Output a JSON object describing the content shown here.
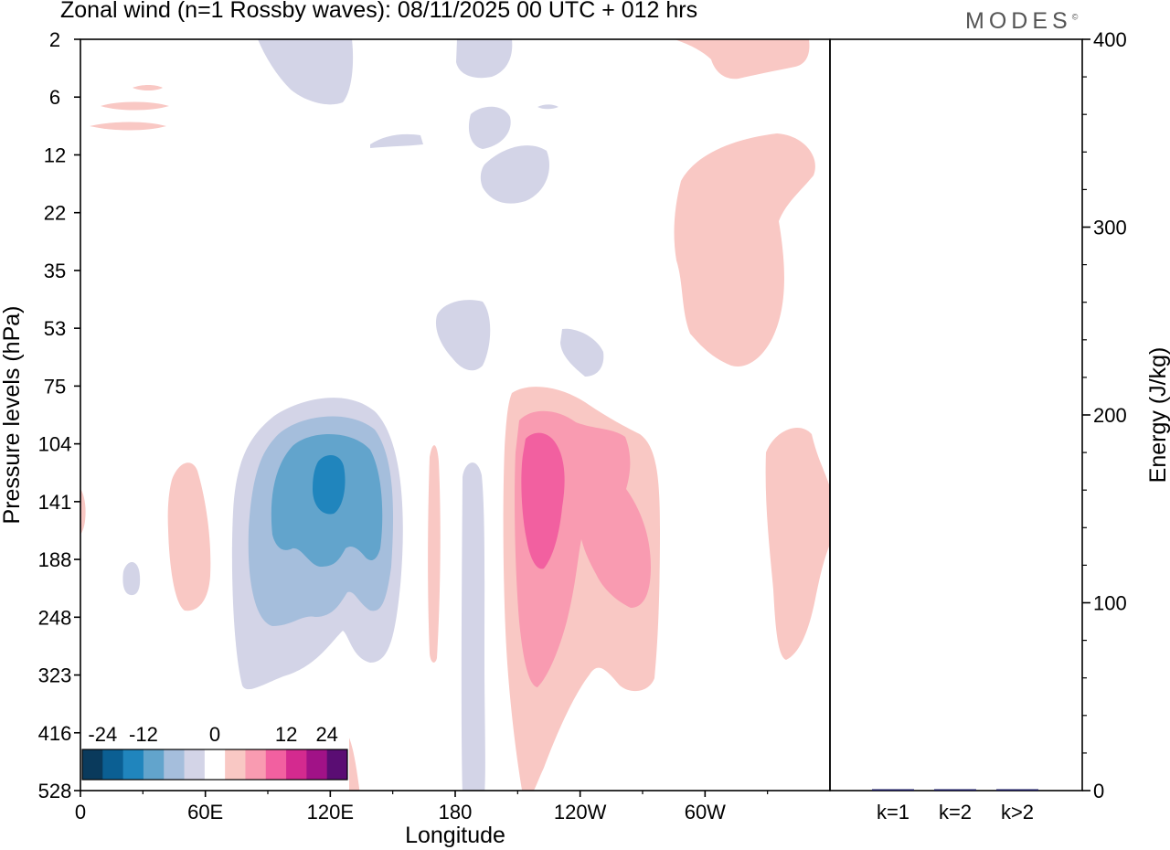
{
  "title": "Zonal wind (n=1 Rossby waves):  08/11/2025  00 UTC  + 012 hrs",
  "brand": "MODES",
  "brand_mark": "©",
  "colors": {
    "neg5": "#0a3a5c",
    "neg4": "#0b5f93",
    "neg3": "#2085bd",
    "neg2": "#62a4cc",
    "neg1": "#a5bedc",
    "neg0": "#d3d4e7",
    "zero": "#ffffff",
    "pos0": "#f9c8c4",
    "pos1": "#f99bb1",
    "pos2": "#f260a0",
    "pos3": "#d42a8f",
    "pos4": "#a11287",
    "pos5": "#5a0d73"
  },
  "chart_data": [
    {
      "type": "heatmap",
      "title": "Zonal wind (n=1 Rossby waves)",
      "xlabel": "Longitude",
      "ylabel": "Pressure levels (hPa)",
      "x_ticks": [
        "0",
        "60E",
        "120E",
        "180",
        "120W",
        "60W"
      ],
      "y_ticks": [
        "2",
        "6",
        "12",
        "22",
        "35",
        "53",
        "75",
        "104",
        "141",
        "188",
        "248",
        "323",
        "416",
        "528"
      ],
      "colorbar": {
        "labels": [
          "-24",
          "-12",
          "0",
          "12",
          "24"
        ],
        "levels": [
          -30,
          -24,
          -18,
          -12,
          -6,
          -3,
          3,
          6,
          12,
          18,
          24,
          30
        ]
      },
      "features": [
        {
          "sign": "negative",
          "longitude": 120,
          "pressure_hPa": 130,
          "min_value": -18
        },
        {
          "sign": "positive",
          "longitude": 210,
          "pressure_hPa": 130,
          "max_value": 12
        },
        {
          "sign": "positive",
          "longitude": 325,
          "pressure_hPa": 20,
          "max_value": 3
        },
        {
          "sign": "negative",
          "longitude": 187,
          "pressure_hPa": 330,
          "min_value": -3
        }
      ]
    },
    {
      "type": "bar",
      "ylabel": "Energy (J/kg)",
      "categories": [
        "k=1",
        "k=2",
        "k>2"
      ],
      "values": [
        0.6,
        0.2,
        0.4
      ],
      "ylim": [
        0,
        400
      ],
      "y_ticks": [
        "0",
        "100",
        "200",
        "300",
        "400"
      ]
    }
  ]
}
